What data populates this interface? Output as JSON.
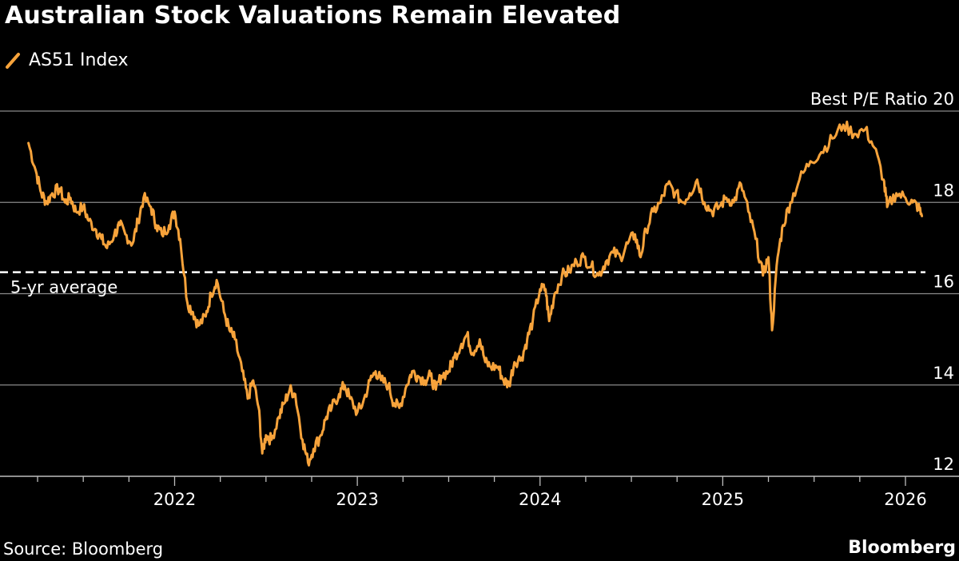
{
  "chart_data": {
    "type": "line",
    "title": "Australian Stock Valuations Remain Elevated",
    "legend": [
      {
        "name": "AS51 Index",
        "color": "#f7a33b"
      }
    ],
    "ylabel": "Best P/E Ratio",
    "ylim": [
      12,
      20
    ],
    "yticks": [
      12,
      14,
      16,
      18,
      20
    ],
    "x_range": [
      2021.17,
      2026.2
    ],
    "xticks": [
      2022,
      2023,
      2024,
      2025,
      2026
    ],
    "xtick_labels": [
      "2022",
      "2023",
      "2024",
      "2025",
      "2026"
    ],
    "reference_line": {
      "label": "5-yr average",
      "value": 16.47
    },
    "series": [
      {
        "name": "AS51 Index",
        "color": "#f7a33b",
        "points": [
          [
            2021.2,
            19.3
          ],
          [
            2021.24,
            18.7
          ],
          [
            2021.27,
            18.2
          ],
          [
            2021.3,
            18.0
          ],
          [
            2021.33,
            18.2
          ],
          [
            2021.37,
            18.3
          ],
          [
            2021.4,
            18.0
          ],
          [
            2021.43,
            18.1
          ],
          [
            2021.46,
            17.8
          ],
          [
            2021.5,
            17.9
          ],
          [
            2021.53,
            17.6
          ],
          [
            2021.57,
            17.4
          ],
          [
            2021.6,
            17.2
          ],
          [
            2021.63,
            17.0
          ],
          [
            2021.67,
            17.3
          ],
          [
            2021.7,
            17.5
          ],
          [
            2021.73,
            17.3
          ],
          [
            2021.77,
            17.1
          ],
          [
            2021.8,
            17.6
          ],
          [
            2021.83,
            18.1
          ],
          [
            2021.87,
            17.9
          ],
          [
            2021.9,
            17.5
          ],
          [
            2021.93,
            17.3
          ],
          [
            2021.97,
            17.5
          ],
          [
            2022.0,
            17.8
          ],
          [
            2022.03,
            17.2
          ],
          [
            2022.07,
            15.8
          ],
          [
            2022.1,
            15.6
          ],
          [
            2022.13,
            15.3
          ],
          [
            2022.17,
            15.5
          ],
          [
            2022.2,
            16.0
          ],
          [
            2022.23,
            16.3
          ],
          [
            2022.27,
            15.6
          ],
          [
            2022.3,
            15.2
          ],
          [
            2022.33,
            15.0
          ],
          [
            2022.37,
            14.3
          ],
          [
            2022.4,
            13.7
          ],
          [
            2022.43,
            14.1
          ],
          [
            2022.46,
            13.5
          ],
          [
            2022.48,
            12.5
          ],
          [
            2022.5,
            12.9
          ],
          [
            2022.53,
            12.8
          ],
          [
            2022.57,
            13.3
          ],
          [
            2022.6,
            13.6
          ],
          [
            2022.63,
            13.9
          ],
          [
            2022.66,
            13.8
          ],
          [
            2022.7,
            12.8
          ],
          [
            2022.73,
            12.3
          ],
          [
            2022.76,
            12.6
          ],
          [
            2022.8,
            12.9
          ],
          [
            2022.83,
            13.3
          ],
          [
            2022.86,
            13.5
          ],
          [
            2022.9,
            13.8
          ],
          [
            2022.93,
            14.0
          ],
          [
            2022.96,
            13.7
          ],
          [
            2023.0,
            13.4
          ],
          [
            2023.03,
            13.6
          ],
          [
            2023.07,
            14.1
          ],
          [
            2023.1,
            14.3
          ],
          [
            2023.13,
            14.1
          ],
          [
            2023.17,
            14.0
          ],
          [
            2023.2,
            13.6
          ],
          [
            2023.23,
            13.5
          ],
          [
            2023.27,
            14.0
          ],
          [
            2023.3,
            14.3
          ],
          [
            2023.33,
            14.2
          ],
          [
            2023.37,
            14.1
          ],
          [
            2023.4,
            14.2
          ],
          [
            2023.43,
            13.9
          ],
          [
            2023.46,
            14.2
          ],
          [
            2023.5,
            14.3
          ],
          [
            2023.53,
            14.6
          ],
          [
            2023.57,
            14.9
          ],
          [
            2023.6,
            15.1
          ],
          [
            2023.63,
            14.7
          ],
          [
            2023.67,
            15.0
          ],
          [
            2023.7,
            14.5
          ],
          [
            2023.73,
            14.4
          ],
          [
            2023.77,
            14.4
          ],
          [
            2023.8,
            14.1
          ],
          [
            2023.83,
            14.0
          ],
          [
            2023.86,
            14.5
          ],
          [
            2023.9,
            14.6
          ],
          [
            2023.93,
            15.0
          ],
          [
            2023.96,
            15.4
          ],
          [
            2024.0,
            16.1
          ],
          [
            2024.03,
            16.1
          ],
          [
            2024.05,
            15.4
          ],
          [
            2024.08,
            16.0
          ],
          [
            2024.12,
            16.4
          ],
          [
            2024.16,
            16.5
          ],
          [
            2024.2,
            16.7
          ],
          [
            2024.24,
            16.8
          ],
          [
            2024.28,
            16.6
          ],
          [
            2024.32,
            16.4
          ],
          [
            2024.36,
            16.7
          ],
          [
            2024.4,
            16.9
          ],
          [
            2024.44,
            16.8
          ],
          [
            2024.48,
            17.1
          ],
          [
            2024.52,
            17.3
          ],
          [
            2024.55,
            16.8
          ],
          [
            2024.58,
            17.4
          ],
          [
            2024.62,
            17.8
          ],
          [
            2024.66,
            18.0
          ],
          [
            2024.7,
            18.4
          ],
          [
            2024.74,
            18.2
          ],
          [
            2024.78,
            18.0
          ],
          [
            2024.82,
            18.2
          ],
          [
            2024.86,
            18.5
          ],
          [
            2024.9,
            18.0
          ],
          [
            2024.94,
            17.8
          ],
          [
            2024.98,
            17.9
          ],
          [
            2025.02,
            18.1
          ],
          [
            2025.06,
            18.0
          ],
          [
            2025.1,
            18.4
          ],
          [
            2025.14,
            17.8
          ],
          [
            2025.18,
            17.2
          ],
          [
            2025.22,
            16.4
          ],
          [
            2025.25,
            16.8
          ],
          [
            2025.27,
            15.2
          ],
          [
            2025.3,
            16.8
          ],
          [
            2025.33,
            17.5
          ],
          [
            2025.37,
            18.0
          ],
          [
            2025.42,
            18.5
          ],
          [
            2025.48,
            18.9
          ],
          [
            2025.54,
            19.1
          ],
          [
            2025.6,
            19.4
          ],
          [
            2025.66,
            19.7
          ],
          [
            2025.72,
            19.5
          ],
          [
            2025.78,
            19.6
          ],
          [
            2025.83,
            19.2
          ],
          [
            2025.88,
            18.5
          ],
          [
            2025.9,
            17.9
          ],
          [
            2025.95,
            18.2
          ],
          [
            2026.0,
            18.1
          ],
          [
            2026.04,
            18.0
          ],
          [
            2026.07,
            17.9
          ],
          [
            2026.09,
            17.7
          ]
        ]
      }
    ],
    "source": "Source: Bloomberg",
    "brand": "Bloomberg"
  }
}
